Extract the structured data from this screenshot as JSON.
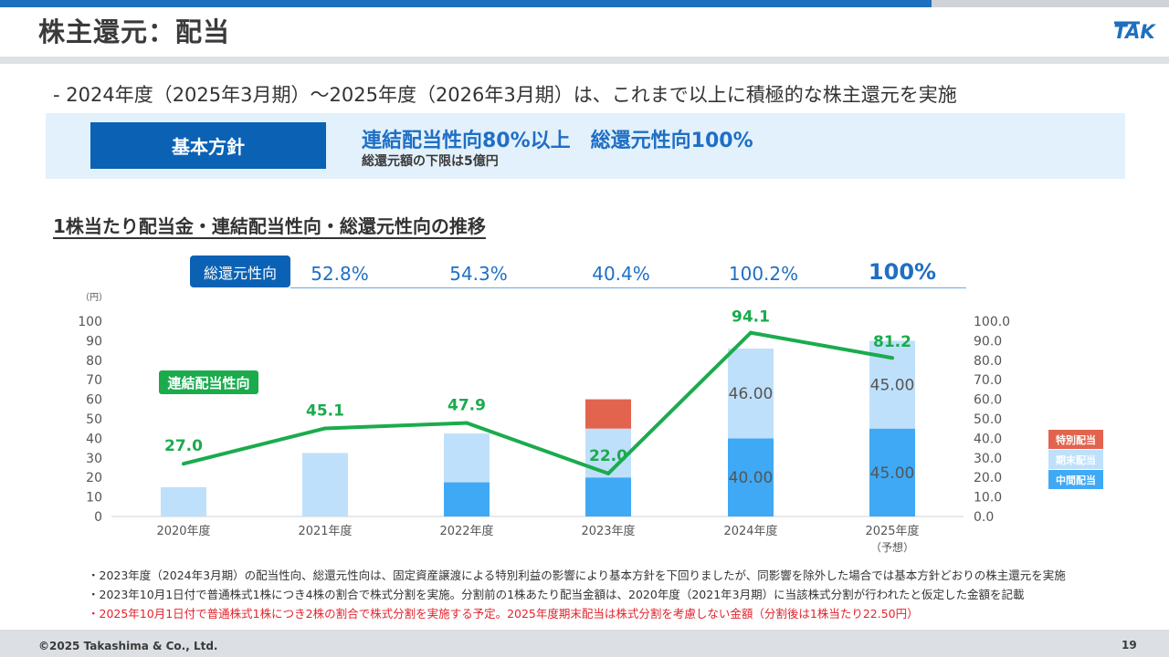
{
  "page": {
    "title": "株主還元：配当",
    "logo_text": "TAK",
    "page_number": "19",
    "copyright": "©2025 Takashima & Co., Ltd."
  },
  "intro": "- 2024年度（2025年3月期）～2025年度（2026年3月期）は、これまで以上に積極的な株主還元を実施",
  "policy": {
    "label": "基本方針",
    "main": "連結配当性向80%以上　総還元性向100%",
    "sub": "総還元額の下限は5億円"
  },
  "section_title": "1株当たり配当金・連結配当性向・総還元性向の推移",
  "total_return": {
    "label": "総還元性向",
    "values": [
      "52.8%",
      "54.3%",
      "40.4%",
      "100.2%",
      "100%"
    ]
  },
  "chart_data": {
    "type": "bar",
    "categories": [
      "2020年度",
      "2021年度",
      "2022年度",
      "2023年度",
      "2024年度",
      "2025年度"
    ],
    "category_note": {
      "index": 5,
      "text": "（予想）"
    },
    "y_unit": "（円）",
    "ylim": [
      0,
      100
    ],
    "yticks_left": [
      "0",
      "10",
      "20",
      "30",
      "40",
      "50",
      "60",
      "70",
      "80",
      "90",
      "100"
    ],
    "yticks_right": [
      "0.0",
      "10.0",
      "20.0",
      "30.0",
      "40.0",
      "50.0",
      "60.0",
      "70.0",
      "80.0",
      "90.0",
      "100.0"
    ],
    "series": [
      {
        "name": "中間配当",
        "color": "#3fa9f5",
        "values": [
          0,
          0,
          17.5,
          20,
          40,
          45
        ],
        "labels": [
          "",
          "",
          "",
          "",
          "40.00",
          "45.00"
        ]
      },
      {
        "name": "期末配当",
        "color": "#bfe0fa",
        "values": [
          15,
          32.5,
          25,
          25,
          46,
          45
        ],
        "labels": [
          "",
          "",
          "",
          "",
          "46.00",
          "45.00"
        ]
      },
      {
        "name": "特別配当",
        "color": "#e2644f",
        "values": [
          0,
          0,
          0,
          15,
          0,
          0
        ],
        "labels": [
          "",
          "",
          "",
          "",
          "",
          ""
        ]
      }
    ],
    "line": {
      "name": "連結配当性向",
      "color": "#1bab4d",
      "values": [
        27.0,
        45.1,
        47.9,
        22.0,
        94.1,
        81.2
      ],
      "labels": [
        "27.0",
        "45.1",
        "47.9",
        "22.0",
        "94.1",
        "81.2"
      ]
    },
    "legend_position": "right"
  },
  "notes": [
    "・2023年度（2024年3月期）の配当性向、総還元性向は、固定資産譲渡による特別利益の影響により基本方針を下回りましたが、同影響を除外した場合では基本方針どおりの株主還元を実施",
    "・2023年10月1日付で普通株式1株につき4株の割合で株式分割を実施。分割前の1株あたり配当金額は、2020年度（2021年3月期）に当該株式分割が行われたと仮定した金額を記載",
    "・2025年10月1日付で普通株式1株につき2株の割合で株式分割を実施する予定。2025年度期末配当は株式分割を考慮しない金額（分割後は1株当たり22.50円）"
  ]
}
